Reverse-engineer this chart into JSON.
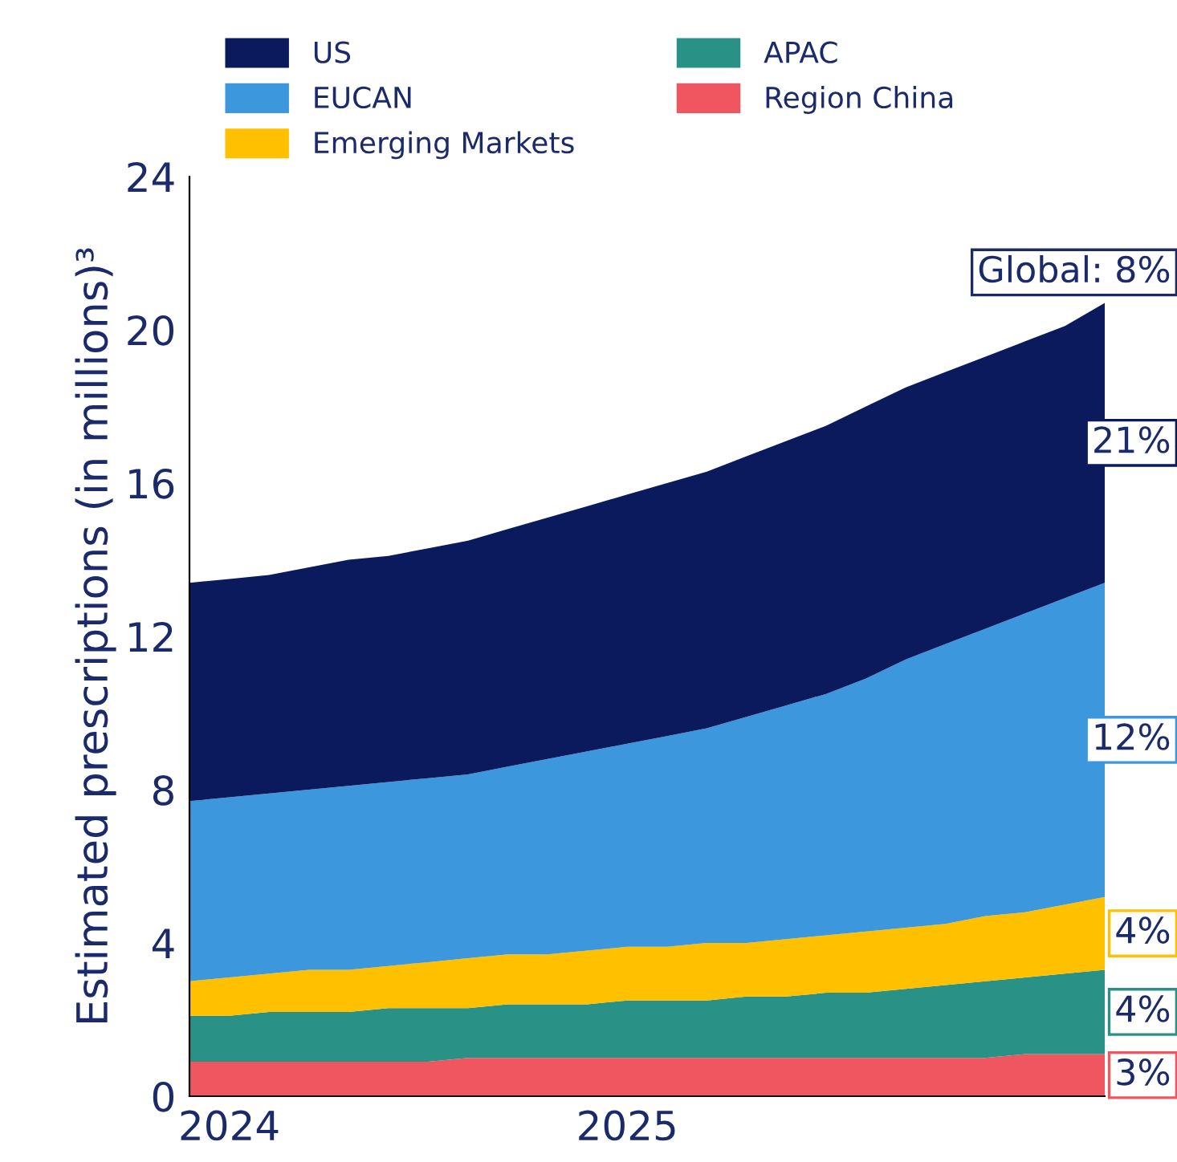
{
  "chart_data": {
    "type": "area",
    "stacked": true,
    "ylabel": "Estimated prescriptions (in millions)³",
    "categories": [
      null,
      "2024",
      null,
      null,
      null,
      null,
      null,
      null,
      null,
      null,
      null,
      "2025",
      null,
      null,
      null,
      null,
      null,
      null,
      null,
      null,
      null,
      null,
      null,
      null
    ],
    "ylim": [
      0,
      24
    ],
    "yticks": [
      0,
      4,
      8,
      12,
      16,
      20,
      24
    ],
    "grid": false,
    "legend": "top",
    "series": [
      {
        "name": "Region China",
        "color": "#f0565f",
        "values": [
          0.9,
          0.9,
          0.9,
          0.9,
          0.9,
          0.9,
          0.9,
          1.0,
          1.0,
          1.0,
          1.0,
          1.0,
          1.0,
          1.0,
          1.0,
          1.0,
          1.0,
          1.0,
          1.0,
          1.0,
          1.0,
          1.1,
          1.1,
          1.1
        ]
      },
      {
        "name": "APAC",
        "color": "#2a9187",
        "values": [
          1.2,
          1.2,
          1.3,
          1.3,
          1.3,
          1.4,
          1.4,
          1.3,
          1.4,
          1.4,
          1.4,
          1.5,
          1.5,
          1.5,
          1.6,
          1.6,
          1.7,
          1.7,
          1.8,
          1.9,
          2.0,
          2.0,
          2.1,
          2.2
        ]
      },
      {
        "name": "Emerging Markets",
        "color": "#ffc000",
        "values": [
          0.9,
          1.0,
          1.0,
          1.1,
          1.1,
          1.1,
          1.2,
          1.3,
          1.3,
          1.3,
          1.4,
          1.4,
          1.4,
          1.5,
          1.4,
          1.5,
          1.5,
          1.6,
          1.6,
          1.6,
          1.7,
          1.7,
          1.8,
          1.9
        ]
      },
      {
        "name": "EUCAN",
        "color": "#3d97dd",
        "values": [
          4.7,
          4.7,
          4.7,
          4.7,
          4.8,
          4.8,
          4.8,
          4.8,
          4.9,
          5.1,
          5.2,
          5.3,
          5.5,
          5.6,
          5.9,
          6.1,
          6.3,
          6.6,
          7.0,
          7.3,
          7.5,
          7.8,
          8.0,
          8.2
        ]
      },
      {
        "name": "US",
        "color": "#0b1a5c",
        "values": [
          5.7,
          5.7,
          5.7,
          5.8,
          5.9,
          5.9,
          6.0,
          6.1,
          6.2,
          6.3,
          6.4,
          6.5,
          6.6,
          6.7,
          6.8,
          6.9,
          7.0,
          7.1,
          7.1,
          7.1,
          7.1,
          7.1,
          7.1,
          7.3
        ]
      }
    ],
    "annotations": [
      "Global: 8%",
      "21%",
      "12%",
      "4%",
      "4%",
      "3%"
    ]
  }
}
